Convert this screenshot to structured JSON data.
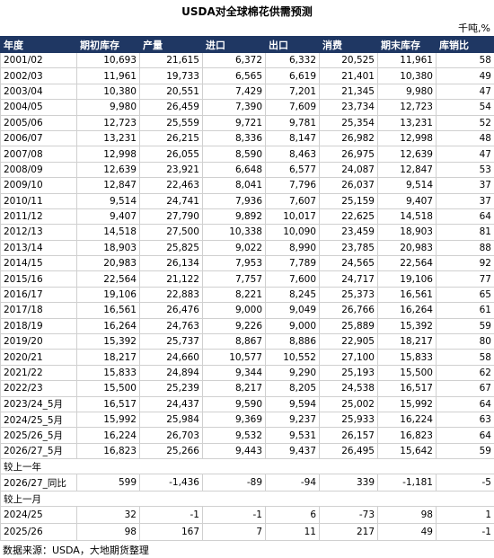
{
  "header": {
    "title": "USDA对全球棉花供需预测",
    "unit": "千吨,%"
  },
  "table": {
    "columns": [
      "年度",
      "期初库存",
      "产量",
      "进口",
      "出口",
      "消费",
      "期末库存",
      "库销比"
    ],
    "rows": [
      [
        "2001/02",
        "10,693",
        "21,615",
        "6,372",
        "6,332",
        "20,525",
        "11,961",
        "58"
      ],
      [
        "2002/03",
        "11,961",
        "19,733",
        "6,565",
        "6,619",
        "21,401",
        "10,380",
        "49"
      ],
      [
        "2003/04",
        "10,380",
        "20,551",
        "7,429",
        "7,201",
        "21,345",
        "9,980",
        "47"
      ],
      [
        "2004/05",
        "9,980",
        "26,459",
        "7,390",
        "7,609",
        "23,734",
        "12,723",
        "54"
      ],
      [
        "2005/06",
        "12,723",
        "25,559",
        "9,721",
        "9,781",
        "25,354",
        "13,231",
        "52"
      ],
      [
        "2006/07",
        "13,231",
        "26,215",
        "8,336",
        "8,147",
        "26,982",
        "12,998",
        "48"
      ],
      [
        "2007/08",
        "12,998",
        "26,055",
        "8,590",
        "8,463",
        "26,975",
        "12,639",
        "47"
      ],
      [
        "2008/09",
        "12,639",
        "23,921",
        "6,648",
        "6,577",
        "24,087",
        "12,847",
        "53"
      ],
      [
        "2009/10",
        "12,847",
        "22,463",
        "8,041",
        "7,796",
        "26,037",
        "9,514",
        "37"
      ],
      [
        "2010/11",
        "9,514",
        "24,741",
        "7,936",
        "7,607",
        "25,159",
        "9,407",
        "37"
      ],
      [
        "2011/12",
        "9,407",
        "27,790",
        "9,892",
        "10,017",
        "22,625",
        "14,518",
        "64"
      ],
      [
        "2012/13",
        "14,518",
        "27,500",
        "10,338",
        "10,090",
        "23,459",
        "18,903",
        "81"
      ],
      [
        "2013/14",
        "18,903",
        "25,825",
        "9,022",
        "8,990",
        "23,785",
        "20,983",
        "88"
      ],
      [
        "2014/15",
        "20,983",
        "26,134",
        "7,953",
        "7,789",
        "24,565",
        "22,564",
        "92"
      ],
      [
        "2015/16",
        "22,564",
        "21,122",
        "7,757",
        "7,600",
        "24,717",
        "19,106",
        "77"
      ],
      [
        "2016/17",
        "19,106",
        "22,883",
        "8,221",
        "8,245",
        "25,373",
        "16,561",
        "65"
      ],
      [
        "2017/18",
        "16,561",
        "26,476",
        "9,000",
        "9,049",
        "26,766",
        "16,264",
        "61"
      ],
      [
        "2018/19",
        "16,264",
        "24,763",
        "9,226",
        "9,000",
        "25,889",
        "15,392",
        "59"
      ],
      [
        "2019/20",
        "15,392",
        "25,737",
        "8,867",
        "8,886",
        "22,905",
        "18,217",
        "80"
      ],
      [
        "2020/21",
        "18,217",
        "24,660",
        "10,577",
        "10,552",
        "27,100",
        "15,833",
        "58"
      ],
      [
        "2021/22",
        "15,833",
        "24,894",
        "9,344",
        "9,290",
        "25,193",
        "15,500",
        "62"
      ],
      [
        "2022/23",
        "15,500",
        "25,239",
        "8,217",
        "8,205",
        "24,538",
        "16,517",
        "67"
      ],
      [
        "2023/24_5月",
        "16,517",
        "24,437",
        "9,590",
        "9,594",
        "25,002",
        "15,992",
        "64"
      ],
      [
        "2024/25_5月",
        "15,992",
        "25,984",
        "9,369",
        "9,237",
        "25,933",
        "16,224",
        "63"
      ],
      [
        "2025/26_5月",
        "16,224",
        "26,703",
        "9,532",
        "9,531",
        "26,157",
        "16,823",
        "64"
      ],
      [
        "2026/27_5月",
        "16,823",
        "25,266",
        "9,443",
        "9,437",
        "26,495",
        "15,642",
        "59"
      ]
    ],
    "sections": [
      {
        "label": "较上一年",
        "rows": [
          [
            "2026/27_同比",
            "599",
            "-1,436",
            "-89",
            "-94",
            "339",
            "-1,181",
            "-5"
          ]
        ]
      },
      {
        "label": "较上一月",
        "rows": [
          [
            "2024/25",
            "32",
            "-1",
            "-1",
            "6",
            "-73",
            "98",
            "1"
          ],
          [
            "2025/26",
            "98",
            "167",
            "7",
            "11",
            "217",
            "49",
            "-1"
          ]
        ]
      }
    ]
  },
  "footer": {
    "source": "数据来源：USDA，大地期货整理"
  }
}
